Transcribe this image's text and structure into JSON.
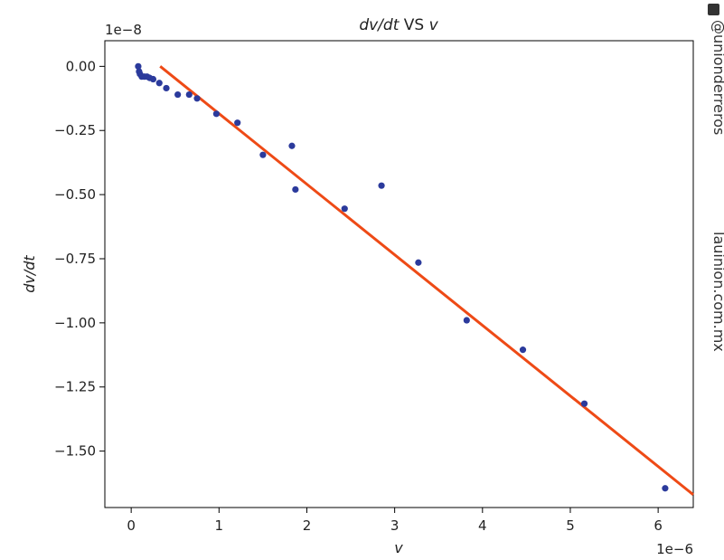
{
  "chart_data": {
    "type": "scatter",
    "title_italic_part1": "dv/dt",
    "title_middle": " VS ",
    "title_italic_part2": "v",
    "xlabel": "v",
    "ylabel": "dv/dt",
    "x_scale_text": "1e−6",
    "y_scale_text": "1e−8",
    "xlim": [
      -0.3,
      6.4
    ],
    "ylim": [
      -1.72,
      0.1
    ],
    "x_ticks": [
      {
        "value": 0,
        "label": "0"
      },
      {
        "value": 1,
        "label": "1"
      },
      {
        "value": 2,
        "label": "2"
      },
      {
        "value": 3,
        "label": "3"
      },
      {
        "value": 4,
        "label": "4"
      },
      {
        "value": 5,
        "label": "5"
      },
      {
        "value": 6,
        "label": "6"
      }
    ],
    "y_ticks": [
      {
        "value": 0.0,
        "label": "0.00"
      },
      {
        "value": -0.25,
        "label": "−0.25"
      },
      {
        "value": -0.5,
        "label": "−0.50"
      },
      {
        "value": -0.75,
        "label": "−0.75"
      },
      {
        "value": -1.0,
        "label": "−1.00"
      },
      {
        "value": -1.25,
        "label": "−1.25"
      },
      {
        "value": -1.5,
        "label": "−1.50"
      }
    ],
    "points": [
      {
        "x": 0.08,
        "y": 0.0
      },
      {
        "x": 0.09,
        "y": -0.02
      },
      {
        "x": 0.1,
        "y": -0.03
      },
      {
        "x": 0.12,
        "y": -0.04
      },
      {
        "x": 0.15,
        "y": -0.04
      },
      {
        "x": 0.18,
        "y": -0.04
      },
      {
        "x": 0.21,
        "y": -0.045
      },
      {
        "x": 0.25,
        "y": -0.05
      },
      {
        "x": 0.32,
        "y": -0.065
      },
      {
        "x": 0.4,
        "y": -0.085
      },
      {
        "x": 0.53,
        "y": -0.11
      },
      {
        "x": 0.66,
        "y": -0.11
      },
      {
        "x": 0.75,
        "y": -0.125
      },
      {
        "x": 0.97,
        "y": -0.185
      },
      {
        "x": 1.21,
        "y": -0.22
      },
      {
        "x": 1.5,
        "y": -0.345
      },
      {
        "x": 1.83,
        "y": -0.31
      },
      {
        "x": 1.87,
        "y": -0.48
      },
      {
        "x": 2.43,
        "y": -0.555
      },
      {
        "x": 2.85,
        "y": -0.465
      },
      {
        "x": 3.27,
        "y": -0.765
      },
      {
        "x": 3.82,
        "y": -0.99
      },
      {
        "x": 4.46,
        "y": -1.105
      },
      {
        "x": 5.16,
        "y": -1.315
      },
      {
        "x": 6.08,
        "y": -1.645
      }
    ],
    "fit_line": {
      "x1": 0.33,
      "y1": 0.0,
      "x2": 6.4,
      "y2": -1.67
    },
    "point_color": "#2b3a9c",
    "line_color": "#ee4a16",
    "grid": false,
    "legend": "none"
  },
  "watermark": {
    "handle": "@unionderreros",
    "site": "lauinion.com.mx"
  }
}
